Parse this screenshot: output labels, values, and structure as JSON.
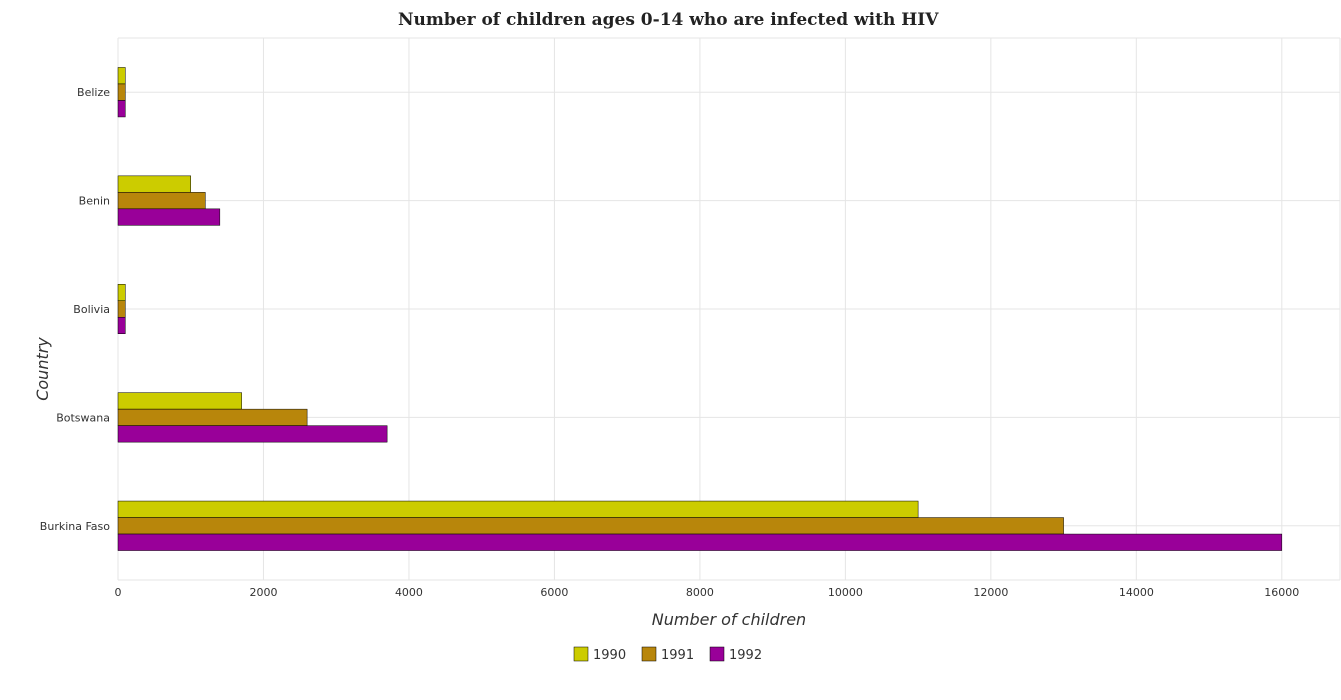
{
  "chart_data": {
    "type": "bar",
    "orientation": "horizontal",
    "title": "Number of children ages 0-14 who are infected with HIV",
    "xlabel": "Number of children",
    "ylabel": "Country",
    "categories": [
      "Belize",
      "Benin",
      "Bolivia",
      "Botswana",
      "Burkina Faso"
    ],
    "series": [
      {
        "name": "1990",
        "color": "#cccc00",
        "values": [
          100,
          1000,
          100,
          1700,
          11000
        ]
      },
      {
        "name": "1991",
        "color": "#b8860b",
        "values": [
          100,
          1200,
          100,
          2600,
          13000
        ]
      },
      {
        "name": "1992",
        "color": "#990099",
        "values": [
          100,
          1400,
          100,
          3700,
          16000
        ]
      }
    ],
    "xlim": [
      0,
      16800
    ],
    "xticks": [
      0,
      2000,
      4000,
      6000,
      8000,
      10000,
      12000,
      14000,
      16000
    ],
    "xtick_labels": [
      "0",
      "2000",
      "4000",
      "6000",
      "8000",
      "10000",
      "12000",
      "14000",
      "16000"
    ],
    "grid": true,
    "legend_position": "bottom-center"
  }
}
